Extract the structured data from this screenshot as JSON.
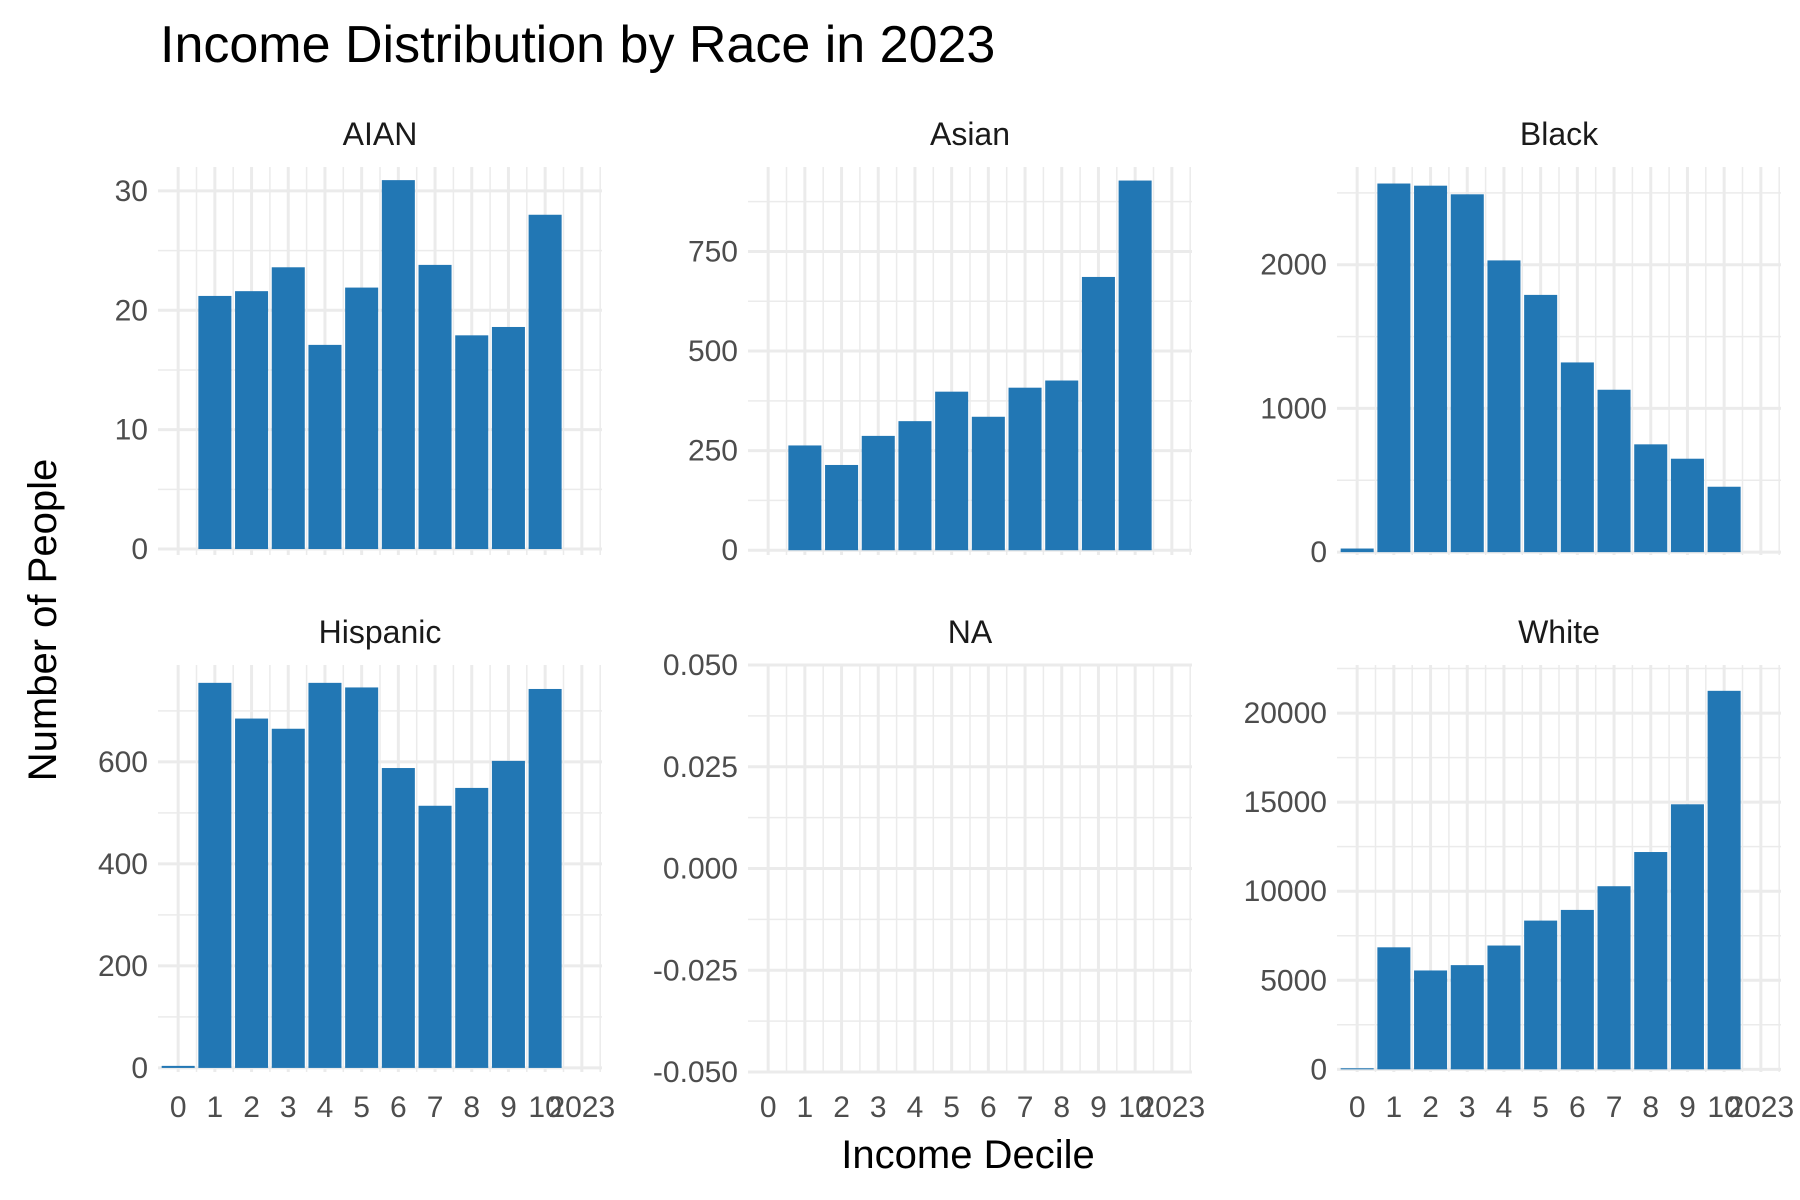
{
  "chart_data": {
    "type": "bar",
    "title": "Income Distribution by Race in 2023",
    "xlabel": "Income Decile",
    "ylabel": "Number of People",
    "bar_color": "#2277B4",
    "grid": true,
    "x_tick_labels": [
      "0",
      "1",
      "2",
      "3",
      "4",
      "5",
      "6",
      "7",
      "8",
      "9",
      "10",
      "2023"
    ],
    "panels": [
      {
        "name": "AIAN",
        "categories": [
          "1",
          "2",
          "3",
          "4",
          "5",
          "6",
          "7",
          "8",
          "9",
          "10"
        ],
        "values": [
          21.2,
          21.6,
          23.6,
          17.1,
          21.9,
          30.9,
          23.8,
          17.9,
          18.6,
          28.0
        ],
        "ylim": [
          -0.5,
          32.0
        ],
        "y_ticks": [
          0,
          10,
          20,
          30
        ],
        "y_tick_labels": [
          "0",
          "10",
          "20",
          "30"
        ]
      },
      {
        "name": "Asian",
        "categories": [
          "1",
          "2",
          "3",
          "4",
          "5",
          "6",
          "7",
          "8",
          "9",
          "10"
        ],
        "values": [
          263,
          214,
          287,
          324,
          398,
          335,
          408,
          426,
          686,
          928
        ],
        "ylim": [
          -12,
          962
        ],
        "y_ticks": [
          0,
          250,
          500,
          750
        ],
        "y_tick_labels": [
          "0",
          "250",
          "500",
          "750"
        ]
      },
      {
        "name": "Black",
        "categories": [
          "0",
          "1",
          "2",
          "3",
          "4",
          "5",
          "6",
          "7",
          "8",
          "9",
          "10"
        ],
        "values": [
          25,
          2565,
          2550,
          2490,
          2030,
          1790,
          1320,
          1130,
          750,
          650,
          455
        ],
        "ylim": [
          -20,
          2680
        ],
        "y_ticks": [
          0,
          1000,
          2000
        ],
        "y_tick_labels": [
          "0",
          "1000",
          "2000"
        ]
      },
      {
        "name": "Hispanic",
        "categories": [
          "0",
          "1",
          "2",
          "3",
          "4",
          "5",
          "6",
          "7",
          "8",
          "9",
          "10"
        ],
        "values": [
          4,
          755,
          685,
          665,
          755,
          746,
          588,
          514,
          549,
          602,
          743
        ],
        "ylim": [
          -8,
          790
        ],
        "y_ticks": [
          0,
          200,
          400,
          600
        ],
        "y_tick_labels": [
          "0",
          "200",
          "400",
          "600"
        ]
      },
      {
        "name": "NA",
        "categories": [],
        "values": [],
        "ylim": [
          -0.05,
          0.05
        ],
        "y_ticks": [
          -0.05,
          -0.025,
          0,
          0.025,
          0.05
        ],
        "y_tick_labels": [
          "-0.050",
          "-0.025",
          "0.000",
          "0.025",
          "0.050"
        ]
      },
      {
        "name": "White",
        "categories": [
          "0",
          "1",
          "2",
          "3",
          "4",
          "5",
          "6",
          "7",
          "8",
          "9",
          "10"
        ],
        "values": [
          60,
          6850,
          5550,
          5850,
          6950,
          8350,
          8950,
          10280,
          12200,
          14880,
          21250
        ],
        "ylim": [
          -150,
          22700
        ],
        "y_ticks": [
          0,
          5000,
          10000,
          15000,
          20000
        ],
        "y_tick_labels": [
          "0",
          "5000",
          "10000",
          "15000",
          "20000"
        ]
      }
    ]
  }
}
